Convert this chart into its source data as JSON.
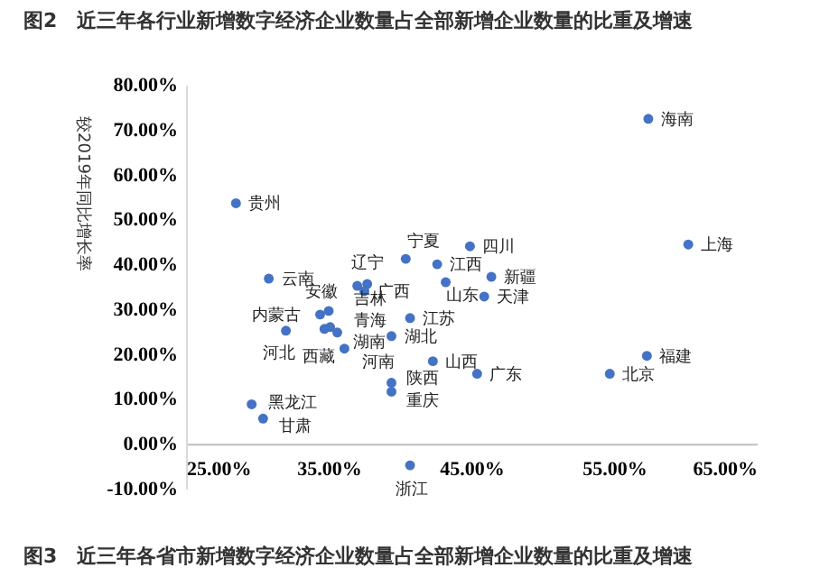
{
  "chart_data": {
    "type": "scatter",
    "title": "图2　近三年各行业新增数字经济企业数量占全部新增企业数量的比重及增速",
    "ylabel": "较2019年同比增长率",
    "xlim": [
      25,
      65
    ],
    "ylim": [
      -10,
      80
    ],
    "xticks": [
      {
        "value": 25,
        "label": "25.00%"
      },
      {
        "value": 35,
        "label": "35.00%"
      },
      {
        "value": 45,
        "label": "45.00%"
      },
      {
        "value": 55,
        "label": "55.00%"
      },
      {
        "value": 65,
        "label": "65.00%"
      }
    ],
    "yticks": [
      {
        "value": -10,
        "label": "-10.00%"
      },
      {
        "value": 0,
        "label": "0.00%"
      },
      {
        "value": 10,
        "label": "10.00%"
      },
      {
        "value": 20,
        "label": "20.00%"
      },
      {
        "value": 30,
        "label": "30.00%"
      },
      {
        "value": 40,
        "label": "40.00%"
      },
      {
        "value": 50,
        "label": "50.00%"
      },
      {
        "value": 60,
        "label": "60.00%"
      },
      {
        "value": 70,
        "label": "70.00%"
      },
      {
        "value": 80,
        "label": "80.00%"
      }
    ],
    "grid": false,
    "legend": false,
    "marker": "circle",
    "series": [
      {
        "color": "#4472c4",
        "x": [
          28.5,
          57.4,
          60.2,
          44.9,
          40.4,
          42.6,
          37.7,
          37.0,
          37.5,
          30.8,
          34.4,
          35.0,
          35.1,
          34.7,
          35.6,
          36.1,
          32.0,
          39.4,
          40.7,
          39.4,
          39.4,
          40.7,
          29.6,
          30.4,
          42.3,
          45.4,
          54.7,
          57.3,
          43.2,
          46.4,
          45.9
        ],
        "values": [
          53.6,
          72.4,
          44.4,
          44.0,
          41.2,
          40.0,
          35.6,
          35.2,
          34.0,
          36.8,
          28.8,
          29.6,
          26.0,
          25.6,
          24.8,
          21.2,
          25.2,
          24.0,
          28.0,
          13.6,
          11.6,
          -4.8,
          8.8,
          5.6,
          18.4,
          15.6,
          15.6,
          19.6,
          36.0,
          37.2,
          32.8
        ]
      }
    ],
    "annotations": [
      {
        "text": "贵州",
        "x": 28.5,
        "y": 53.6
      },
      {
        "text": "海南",
        "x": 57.4,
        "y": 72.4
      },
      {
        "text": "上海",
        "x": 60.2,
        "y": 44.4
      },
      {
        "text": "四川",
        "x": 44.9,
        "y": 44.0
      },
      {
        "text": "宁夏",
        "x": 40.4,
        "y": 41.2
      },
      {
        "text": "江西",
        "x": 42.6,
        "y": 40.0
      },
      {
        "text": "辽宁",
        "x": 37.7,
        "y": 35.6
      },
      {
        "text": "安徽",
        "x": 37.0,
        "y": 35.2
      },
      {
        "text": "广西",
        "x": 37.5,
        "y": 34.0
      },
      {
        "text": "云南",
        "x": 30.8,
        "y": 36.8
      },
      {
        "text": "内蒙古",
        "x": 34.4,
        "y": 28.8
      },
      {
        "text": "吉林",
        "x": 35.0,
        "y": 29.6
      },
      {
        "text": "青海",
        "x": 35.1,
        "y": 26.0
      },
      {
        "text": "西藏",
        "x": 34.7,
        "y": 25.6
      },
      {
        "text": "湖南",
        "x": 35.6,
        "y": 24.8
      },
      {
        "text": "河南",
        "x": 36.1,
        "y": 21.2
      },
      {
        "text": "河北",
        "x": 32.0,
        "y": 25.2
      },
      {
        "text": "湖北",
        "x": 39.4,
        "y": 24.0
      },
      {
        "text": "江苏",
        "x": 40.7,
        "y": 28.0
      },
      {
        "text": "陕西",
        "x": 39.4,
        "y": 13.6
      },
      {
        "text": "重庆",
        "x": 39.4,
        "y": 11.6
      },
      {
        "text": "浙江",
        "x": 40.7,
        "y": -4.8
      },
      {
        "text": "黑龙江",
        "x": 29.6,
        "y": 8.8
      },
      {
        "text": "甘肃",
        "x": 30.4,
        "y": 5.6
      },
      {
        "text": "山西",
        "x": 42.3,
        "y": 18.4
      },
      {
        "text": "广东",
        "x": 45.4,
        "y": 15.6
      },
      {
        "text": "北京",
        "x": 54.7,
        "y": 15.6
      },
      {
        "text": "福建",
        "x": 57.3,
        "y": 19.6
      },
      {
        "text": "山东",
        "x": 43.2,
        "y": 36.0
      },
      {
        "text": "新疆",
        "x": 46.4,
        "y": 37.2
      },
      {
        "text": "天津",
        "x": 45.9,
        "y": 32.8
      },
      "图3　近三年各省市新增数字经济企业数量占全部新增企业数量的比重及增速"
    ]
  }
}
